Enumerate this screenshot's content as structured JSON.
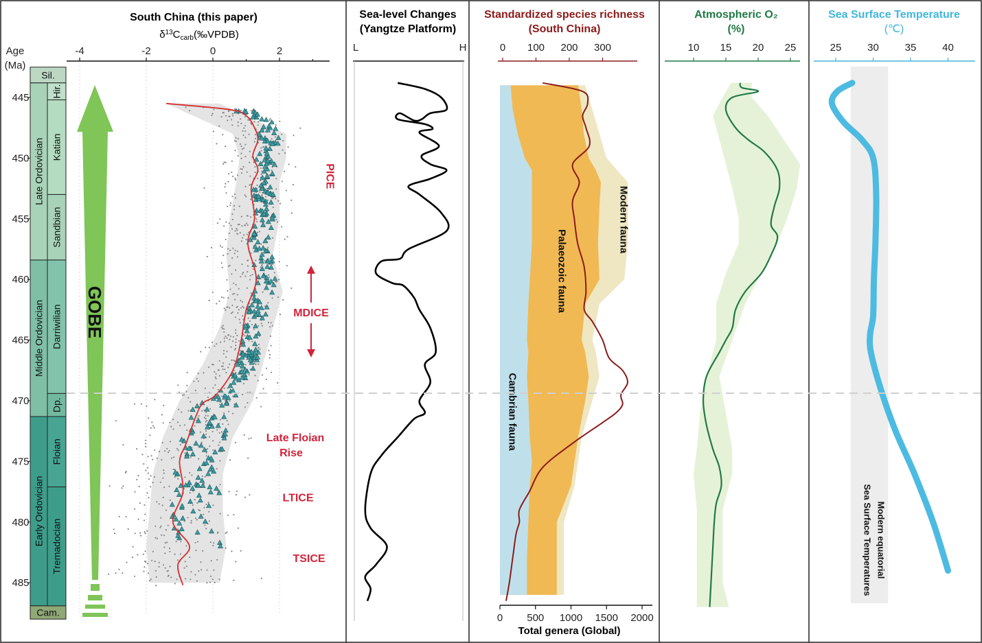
{
  "chart_data": [
    {
      "type": "scatter",
      "title": "South China (this paper)",
      "xlabel": "δ13Ccarb(‰VPDB)",
      "xlabel_parts": {
        "delta": "δ",
        "sup": "13",
        "c": "C",
        "sub": "carb",
        "unit": "(‰VPDB)"
      },
      "ylabel": "Age (Ma)",
      "ylabel_parts": [
        "Age",
        "(Ma)"
      ],
      "xlim": [
        -4.4,
        3.4
      ],
      "ylim": [
        443,
        488
      ],
      "xticks": [
        "-4",
        "-2",
        "0",
        "2"
      ],
      "xtick_values": [
        -4,
        -2,
        0,
        2
      ],
      "yticks": [
        "445",
        "450",
        "455",
        "460",
        "465",
        "470",
        "475",
        "480",
        "485"
      ],
      "ytick_values": [
        445,
        450,
        455,
        460,
        465,
        470,
        475,
        480,
        485
      ],
      "mean_curve": {
        "x": [
          -1.4,
          0.5,
          1.0,
          1.25,
          1.35,
          1.2,
          1.35,
          1.15,
          1.25,
          1.05,
          1.3,
          1.0,
          0.85,
          0.6,
          0.1,
          -0.3,
          -0.5,
          -0.8,
          -1.0,
          -0.9,
          -1.2,
          -0.7,
          -1.05,
          -0.9
        ],
        "y": [
          445.5,
          446.0,
          446.5,
          447.5,
          448.5,
          449.8,
          451.0,
          452.5,
          455.0,
          457.0,
          460.0,
          462.5,
          465.0,
          467.5,
          469.5,
          470.2,
          471.2,
          473.5,
          475.0,
          477.5,
          480.0,
          482.0,
          483.5,
          485.2
        ]
      },
      "envelope": {
        "y": [
          445.5,
          448,
          450,
          452,
          455,
          458,
          461,
          464,
          467,
          470,
          473,
          476,
          479,
          482,
          485
        ],
        "lower": [
          -1.4,
          0.6,
          0.8,
          0.7,
          0.5,
          0.4,
          0.5,
          0.2,
          -0.3,
          -1.0,
          -1.5,
          -1.8,
          -1.9,
          -2.0,
          -1.9
        ],
        "upper": [
          0.2,
          2.2,
          2.2,
          2.0,
          2.0,
          1.8,
          2.1,
          1.8,
          1.5,
          1.2,
          0.6,
          0.3,
          0.3,
          0.4,
          0.2
        ]
      },
      "events": [
        {
          "label": "PICE",
          "age": 451.5
        },
        {
          "label": "MDICE",
          "age": 462.7
        },
        {
          "label": "Late Floian",
          "label2": "Rise",
          "age": 473.5
        },
        {
          "label": "LTICE",
          "age": 478
        },
        {
          "label": "TSICE",
          "age": 483
        }
      ],
      "gobe_label": "GOBE",
      "chronostrat": {
        "periods": [
          {
            "name": "Sil.",
            "top": 442.5,
            "base": 443.8,
            "color": "#bcd8c3"
          },
          {
            "name": "Late Ordovician",
            "top": 443.8,
            "base": 458.4,
            "color": "#a9d3b8"
          },
          {
            "name": "Middle Ordovician",
            "top": 458.4,
            "base": 471.3,
            "color": "#7fbfa6"
          },
          {
            "name": "Early Ordovician",
            "top": 471.3,
            "base": 486.9,
            "color": "#3d9d8a"
          },
          {
            "name": "Cam.",
            "top": 486.9,
            "base": 488.0,
            "color": "#8fa876"
          }
        ],
        "stages": [
          {
            "name": "Hir.",
            "top": 443.8,
            "base": 445.2,
            "color": "#bfe0ca"
          },
          {
            "name": "Katian",
            "top": 445.2,
            "base": 453.0,
            "color": "#b3dcc1"
          },
          {
            "name": "Sandbian",
            "top": 453.0,
            "base": 458.4,
            "color": "#a9d3b8"
          },
          {
            "name": "Darriwilian",
            "top": 458.4,
            "base": 469.4,
            "color": "#82c3ab"
          },
          {
            "name": "Dp.",
            "top": 469.4,
            "base": 471.3,
            "color": "#72b9a0"
          },
          {
            "name": "Floian",
            "top": 471.3,
            "base": 477.1,
            "color": "#48a593"
          },
          {
            "name": "Tremadocian",
            "top": 477.1,
            "base": 486.9,
            "color": "#3d9d8a"
          }
        ]
      }
    },
    {
      "type": "line",
      "title": "Sea-level Changes",
      "title2": "(Yangtze Platform)",
      "xticks": [
        "L",
        "H"
      ],
      "x": [
        0.4,
        0.65,
        0.8,
        0.85,
        0.7,
        0.62,
        0.55,
        0.42,
        0.4,
        0.65,
        0.72,
        0.6,
        0.78,
        0.62,
        0.7,
        0.85,
        0.7,
        0.5,
        0.6,
        0.8,
        0.85,
        0.5,
        0.42,
        0.25,
        0.2,
        0.35,
        0.45,
        0.55,
        0.6,
        0.7,
        0.75,
        0.65,
        0.7,
        0.6,
        0.65,
        0.55,
        0.4,
        0.25,
        0.15,
        0.1,
        0.15,
        0.3,
        0.2,
        0.1,
        0.15,
        0.12
      ],
      "y": [
        443.8,
        444.3,
        445.0,
        446.0,
        446.3,
        446.8,
        446.9,
        446.3,
        446.8,
        447.2,
        447.6,
        447.9,
        449.0,
        449.8,
        450.5,
        451.0,
        451.7,
        452.3,
        453.0,
        454.5,
        456.0,
        457.5,
        458.3,
        458.5,
        459.5,
        460.3,
        460.5,
        461.5,
        462.5,
        464.0,
        466.0,
        467.0,
        468.5,
        470.0,
        471.0,
        471.5,
        473.0,
        474.5,
        476.0,
        479.0,
        480.5,
        482.0,
        483.5,
        484.5,
        485.5,
        486.5
      ]
    },
    {
      "type": "area",
      "title": "Standardized species richness",
      "title2": "(South China)",
      "top_axis_ticks": [
        "0",
        "100",
        "200",
        "300"
      ],
      "top_axis_values": [
        0,
        100,
        200,
        300
      ],
      "top_axis_range": [
        -10,
        400
      ],
      "xlabel": "Total genera (Global)",
      "xticks": [
        "0",
        "500",
        "1000",
        "1500",
        "2000"
      ],
      "xtick_values": [
        0,
        500,
        1000,
        1500,
        2000
      ],
      "xlim": [
        0,
        2100
      ],
      "y": [
        444,
        446,
        448,
        450,
        451,
        452,
        454,
        457,
        460,
        462,
        465,
        466,
        468,
        470,
        473,
        475,
        477,
        480,
        483,
        486
      ],
      "series": [
        {
          "name": "Cambrian fauna",
          "values": [
            150,
            180,
            250,
            350,
            450,
            450,
            450,
            450,
            420,
            400,
            380,
            400,
            380,
            400,
            420,
            450,
            420,
            400,
            380,
            380
          ]
        },
        {
          "name": "Palaeozoic fauna",
          "values": [
            1100,
            1150,
            1180,
            1250,
            1350,
            1420,
            1400,
            1380,
            1400,
            1200,
            1150,
            1200,
            1250,
            1200,
            1100,
            1050,
            1000,
            800,
            800,
            800
          ]
        },
        {
          "name": "Modern fauna",
          "values": [
            1200,
            1300,
            1400,
            1500,
            1650,
            1800,
            1800,
            1800,
            1750,
            1400,
            1300,
            1350,
            1400,
            1300,
            1150,
            1100,
            1050,
            900,
            900,
            900
          ]
        }
      ],
      "richness_curve": {
        "x": [
          120,
          240,
          255,
          240,
          250,
          260,
          210,
          230,
          210,
          215,
          225,
          245,
          250,
          245,
          270,
          300,
          320,
          360,
          375,
          355,
          360,
          340,
          300,
          210,
          120,
          80,
          50,
          50,
          40,
          30,
          20,
          10
        ],
        "y": [
          443.8,
          444.5,
          445.5,
          446.5,
          447.5,
          449.0,
          450.5,
          452.0,
          453.5,
          455.0,
          457.0,
          459.0,
          461.0,
          462.5,
          463.5,
          465.0,
          466.5,
          467.5,
          468.5,
          469.5,
          470.3,
          471.0,
          471.8,
          473.5,
          475.5,
          477.5,
          479.0,
          480.0,
          481.0,
          483.0,
          485.0,
          486.5
        ]
      }
    },
    {
      "type": "line",
      "title": "Atmospheric O₂",
      "title2": "(%)",
      "xticks": [
        "10",
        "15",
        "20",
        "25"
      ],
      "xtick_values": [
        10,
        15,
        20,
        25
      ],
      "xlim": [
        6,
        27.5
      ],
      "x": [
        17.2,
        17.5,
        20.0,
        16.0,
        15.0,
        16.5,
        18.5,
        21.0,
        23.0,
        23.3,
        22.5,
        22.0,
        23.0,
        22.0,
        20.5,
        18.0,
        16.5,
        16.0,
        15.0,
        14.0,
        12.0,
        11.5,
        12.0,
        13.0,
        14.0,
        14.3,
        13.5,
        13.2,
        13.0,
        12.8,
        12.6,
        12.5
      ],
      "y": [
        443.8,
        444.2,
        444.5,
        445.0,
        446.0,
        447.5,
        448.5,
        449.5,
        451.0,
        452.5,
        454.0,
        455.5,
        456.5,
        458.0,
        459.5,
        461.0,
        462.5,
        464.0,
        465.0,
        466.0,
        468.0,
        470.0,
        472.0,
        474.0,
        475.5,
        477.0,
        478.5,
        480.0,
        482.0,
        484.0,
        486.0,
        487.0
      ],
      "band_lower": [
        15.8,
        14.5,
        13.0,
        14.0,
        15.0,
        16.0,
        17.0,
        17.0,
        15.0,
        13.5,
        13.5,
        12.0,
        11.0,
        10.5,
        10.0,
        10.5,
        10.5,
        10.5,
        10.5
      ],
      "band_upper": [
        19.0,
        19.0,
        21.5,
        24.0,
        26.5,
        26.0,
        24.5,
        23.0,
        20.5,
        18.0,
        16.0,
        14.0,
        15.0,
        16.0,
        16.0,
        14.5,
        14.5,
        14.5,
        15.5
      ],
      "band_y": [
        443.8,
        445.0,
        446.5,
        448.5,
        450.5,
        452.5,
        455.0,
        457.0,
        459.5,
        462.0,
        465.0,
        468.0,
        471.0,
        474.0,
        476.0,
        479.0,
        482.0,
        485.0,
        487.0
      ]
    },
    {
      "type": "line",
      "title": "Sea Surface Temperature",
      "title2": "(℃)",
      "xticks": [
        "25",
        "30",
        "35",
        "40"
      ],
      "xtick_values": [
        25,
        30,
        35,
        40
      ],
      "xlim": [
        21.7,
        43.5
      ],
      "x": [
        27.2,
        25.2,
        24.5,
        26.0,
        28.5,
        30.0,
        30.4,
        30.3,
        30.1,
        30.0,
        29.6,
        29.7,
        31.0,
        33.0,
        35.5,
        38.0,
        40.0
      ],
      "y": [
        443.8,
        444.5,
        445.5,
        447.0,
        448.5,
        450.0,
        453.0,
        457.0,
        460.0,
        463.0,
        464.5,
        466.0,
        469.0,
        472.5,
        476.0,
        480.0,
        484.0
      ],
      "band_range": [
        27.0,
        32.0
      ],
      "band_label_line1": "Modern equatorial",
      "band_label_line2": "Sea Surface Temperatures"
    }
  ]
}
